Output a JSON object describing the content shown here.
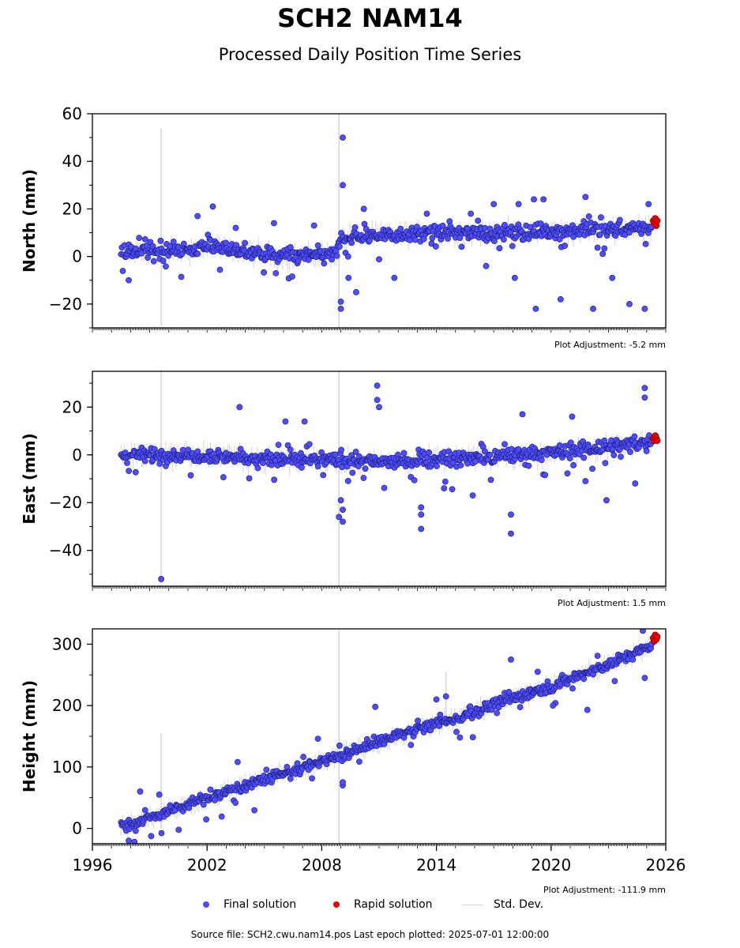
{
  "title": "SCH2 NAM14",
  "subtitle": "Processed Daily Position Time Series",
  "legend": {
    "final": "Final solution",
    "rapid": "Rapid solution",
    "std": "Std. Dev."
  },
  "footer": "Source file: SCH2.cwu.nam14.pos  Last epoch plotted: 2025-07-01 12:00:00",
  "colors": {
    "final": "#4d4dff",
    "final_edge": "#1a1a66",
    "rapid": "#ee0000",
    "std": "#d6d6d6"
  },
  "chart_data": [
    {
      "type": "scatter",
      "ylabel": "North (mm)",
      "xlim": [
        1996,
        2026
      ],
      "ylim": [
        -30,
        60
      ],
      "yticks": [
        -20,
        0,
        20,
        40,
        60
      ],
      "ytick_labels": [
        "−20",
        "0",
        "20",
        "40",
        "60"
      ],
      "xticks": [],
      "adjustment": "Plot Adjustment: -5.2 mm",
      "std_spikes": [
        [
          1999.6,
          -29,
          54
        ],
        [
          2008.9,
          -30,
          60
        ]
      ],
      "series": [
        {
          "name": "Final solution",
          "trend": [
            [
              1997.5,
              2
            ],
            [
              2000,
              2
            ],
            [
              2002,
              4
            ],
            [
              2004,
              2
            ],
            [
              2006,
              0
            ],
            [
              2008.8,
              1
            ],
            [
              2009,
              8
            ],
            [
              2011,
              9
            ],
            [
              2014,
              10
            ],
            [
              2018,
              10
            ],
            [
              2022,
              11
            ],
            [
              2025.5,
              12
            ]
          ],
          "outliers": [
            [
              1997.9,
              -10
            ],
            [
              2001.5,
              17
            ],
            [
              2002.3,
              21
            ],
            [
              2003.5,
              12
            ],
            [
              2005.5,
              14
            ],
            [
              2007.6,
              13
            ],
            [
              2009.1,
              50
            ],
            [
              2009.1,
              30
            ],
            [
              2009,
              -19
            ],
            [
              2009,
              -22
            ],
            [
              2009.4,
              -9
            ],
            [
              2009.8,
              -15
            ],
            [
              2010.2,
              20
            ],
            [
              2011.8,
              -9
            ],
            [
              2013.5,
              18
            ],
            [
              2015.8,
              18
            ],
            [
              2017,
              22
            ],
            [
              2018.3,
              22
            ],
            [
              2019.1,
              24
            ],
            [
              2019.6,
              24
            ],
            [
              2019.2,
              -22
            ],
            [
              2020.5,
              -18
            ],
            [
              2021.8,
              25
            ],
            [
              2022.2,
              -22
            ],
            [
              2024.1,
              -20
            ],
            [
              2024.9,
              -22
            ],
            [
              2025.1,
              22
            ],
            [
              2018.1,
              -9
            ],
            [
              2016.6,
              -4
            ],
            [
              2023.2,
              -9
            ]
          ]
        },
        {
          "name": "Rapid solution",
          "points": [
            [
              2025.35,
              15
            ],
            [
              2025.4,
              14
            ],
            [
              2025.45,
              16
            ],
            [
              2025.5,
              13
            ],
            [
              2025.55,
              15
            ]
          ]
        }
      ]
    },
    {
      "type": "scatter",
      "ylabel": "East (mm)",
      "xlim": [
        1996,
        2026
      ],
      "ylim": [
        -55,
        35
      ],
      "yticks": [
        -40,
        -20,
        0,
        20
      ],
      "ytick_labels": [
        "−40",
        "−20",
        "0",
        "20"
      ],
      "xticks": [],
      "adjustment": "Plot Adjustment: 1.5 mm",
      "std_spikes": [
        [
          1999.6,
          -54,
          35
        ],
        [
          2008.9,
          -55,
          35
        ]
      ],
      "series": [
        {
          "name": "Final solution",
          "trend": [
            [
              1997.5,
              0
            ],
            [
              2002,
              0
            ],
            [
              2005,
              -2
            ],
            [
              2008,
              -2
            ],
            [
              2011,
              -3
            ],
            [
              2014,
              -2
            ],
            [
              2017,
              -1
            ],
            [
              2020,
              1
            ],
            [
              2023,
              3
            ],
            [
              2025.5,
              6
            ]
          ],
          "outliers": [
            [
              1999.6,
              -52
            ],
            [
              2003.7,
              20
            ],
            [
              2006.1,
              14
            ],
            [
              2007.1,
              14
            ],
            [
              2008.9,
              -26
            ],
            [
              2009,
              -19
            ],
            [
              2009.1,
              -23
            ],
            [
              2009.1,
              -28
            ],
            [
              2010.9,
              29
            ],
            [
              2010.9,
              23
            ],
            [
              2011,
              20
            ],
            [
              2013.2,
              -25
            ],
            [
              2013.2,
              -31
            ],
            [
              2013.2,
              -22
            ],
            [
              2017.9,
              -25
            ],
            [
              2017.9,
              -33
            ],
            [
              2018.5,
              17
            ],
            [
              2021.1,
              16
            ],
            [
              2022.9,
              -19
            ],
            [
              2024.9,
              28
            ],
            [
              2024.9,
              24
            ],
            [
              2024.4,
              -12
            ],
            [
              2015.9,
              -17
            ],
            [
              2014.4,
              -14
            ],
            [
              2021.8,
              -11
            ]
          ]
        },
        {
          "name": "Rapid solution",
          "points": [
            [
              2025.35,
              7
            ],
            [
              2025.4,
              6
            ],
            [
              2025.45,
              8
            ],
            [
              2025.5,
              7
            ],
            [
              2025.55,
              6
            ]
          ]
        }
      ]
    },
    {
      "type": "scatter",
      "ylabel": "Height (mm)",
      "xlim": [
        1996,
        2026
      ],
      "ylim": [
        -25,
        325
      ],
      "yticks": [
        0,
        100,
        200,
        300
      ],
      "ytick_labels": [
        "0",
        "100",
        "200",
        "300"
      ],
      "xticks": [
        1996,
        2002,
        2008,
        2014,
        2020,
        2026
      ],
      "xtick_labels": [
        "1996",
        "2002",
        "2008",
        "2014",
        "2020",
        "2026"
      ],
      "adjustment": "Plot Adjustment: -111.9 mm",
      "std_spikes": [
        [
          1999.6,
          0,
          155
        ],
        [
          2008.9,
          -25,
          325
        ],
        [
          2014.5,
          180,
          255
        ]
      ],
      "series": [
        {
          "name": "Final solution",
          "trend": [
            [
              1997.5,
              2
            ],
            [
              2000,
              28
            ],
            [
              2002,
              50
            ],
            [
              2004,
              70
            ],
            [
              2006,
              90
            ],
            [
              2008,
              108
            ],
            [
              2010,
              130
            ],
            [
              2012,
              152
            ],
            [
              2014,
              170
            ],
            [
              2016,
              190
            ],
            [
              2018,
              212
            ],
            [
              2020,
              232
            ],
            [
              2022,
              255
            ],
            [
              2024,
              280
            ],
            [
              2025.5,
              302
            ]
          ],
          "outliers": [
            [
              1997.9,
              -20
            ],
            [
              1998.2,
              -22
            ],
            [
              1998.5,
              60
            ],
            [
              1999.5,
              55
            ],
            [
              2003.6,
              108
            ],
            [
              2007.8,
              146
            ],
            [
              2009.1,
              70
            ],
            [
              2009.1,
              75
            ],
            [
              2010.8,
              198
            ],
            [
              2014,
              210
            ],
            [
              2014.5,
              215
            ],
            [
              2017.9,
              275
            ],
            [
              2019.3,
              255
            ],
            [
              2021.9,
              193
            ],
            [
              2024.9,
              245
            ],
            [
              2024.8,
              322
            ],
            [
              2020.1,
              200
            ]
          ]
        },
        {
          "name": "Rapid solution",
          "points": [
            [
              2025.35,
              310
            ],
            [
              2025.4,
              305
            ],
            [
              2025.45,
              315
            ],
            [
              2025.5,
              308
            ],
            [
              2025.55,
              312
            ]
          ]
        }
      ]
    }
  ]
}
